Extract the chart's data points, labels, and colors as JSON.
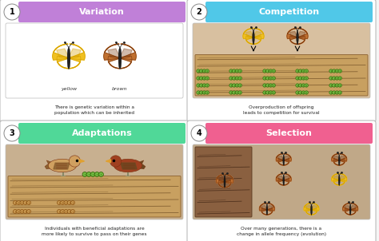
{
  "background_color": "#f5f5f5",
  "panels": [
    {
      "number": "1",
      "title": "Variation",
      "header_color": "#c080d8",
      "description": "There is genetic variation within a\npopulation which can be inherited",
      "col": 0,
      "row": 0,
      "image_bg": "#ffffff"
    },
    {
      "number": "2",
      "title": "Competition",
      "header_color": "#50c8e8",
      "description": "Overproduction of offspring\nleads to competition for survival",
      "col": 1,
      "row": 0,
      "image_bg": "#d8c0a0"
    },
    {
      "number": "3",
      "title": "Adaptations",
      "header_color": "#50d898",
      "description": "Individuals with beneficial adaptations are\nmore likely to survive to pass on their genes",
      "col": 0,
      "row": 1,
      "image_bg": "#c8b090"
    },
    {
      "number": "4",
      "title": "Selection",
      "header_color": "#f06090",
      "description": "Over many generations, there is a\nchange in allele frequency (evolution)",
      "col": 1,
      "row": 1,
      "image_bg": "#c0a888"
    }
  ],
  "yellow_main": "#f0c020",
  "yellow_dark": "#d4a000",
  "yellow_wing_dark": "#1a1a80",
  "brown_main": "#c07030",
  "brown_dark": "#7a3a10",
  "caterpillar_green": "#70b840",
  "caterpillar_tan": "#c89850",
  "bird_tan": "#d0a060",
  "bird_brown": "#a04020",
  "bird_dark": "#7a3010",
  "wood_light": "#c8a060",
  "wood_dark": "#8a6030",
  "wood_stripe": "#6a4820",
  "trunk_main": "#8a6040",
  "trunk_dark": "#5a3a20"
}
